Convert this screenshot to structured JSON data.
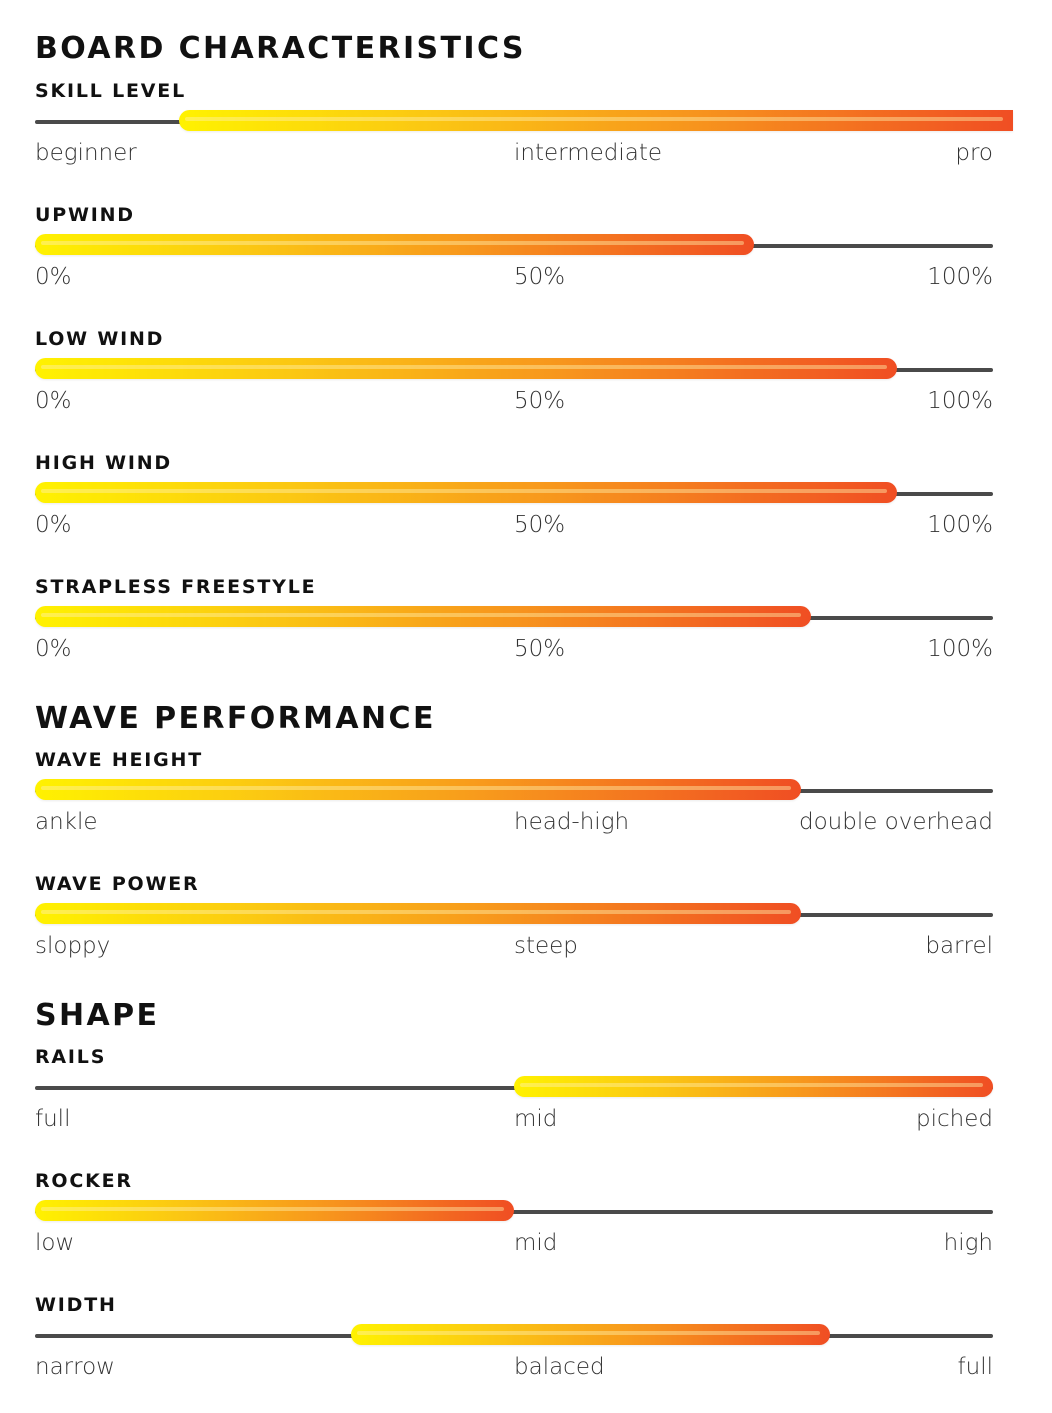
{
  "sections": {
    "board": {
      "title": "BOARD CHARACTERISTICS"
    },
    "wave": {
      "title": "WAVE PERFORMANCE"
    },
    "shape": {
      "title": "SHAPE"
    }
  },
  "metrics": {
    "skill_level": {
      "label": "SKILL LEVEL",
      "scale": [
        "beginner",
        "intermediate",
        "pro"
      ],
      "range": [
        0.15,
        1.0
      ]
    },
    "upwind": {
      "label": "UPWIND",
      "scale": [
        "0%",
        "50%",
        "100%"
      ],
      "range": [
        0.0,
        0.75
      ]
    },
    "low_wind": {
      "label": "LOW WIND",
      "scale": [
        "0%",
        "50%",
        "100%"
      ],
      "range": [
        0.0,
        0.9
      ]
    },
    "high_wind": {
      "label": "HIGH WIND",
      "scale": [
        "0%",
        "50%",
        "100%"
      ],
      "range": [
        0.0,
        0.9
      ]
    },
    "strapless_freestyle": {
      "label": "STRAPLESS FREESTYLE",
      "scale": [
        "0%",
        "50%",
        "100%"
      ],
      "range": [
        0.0,
        0.81
      ]
    },
    "wave_height": {
      "label": "WAVE HEIGHT",
      "scale": [
        "ankle",
        "head-high",
        "double overhead"
      ],
      "range": [
        0.0,
        0.8
      ]
    },
    "wave_power": {
      "label": "WAVE POWER",
      "scale": [
        "sloppy",
        "steep",
        "barrel"
      ],
      "range": [
        0.0,
        0.8
      ]
    },
    "rails": {
      "label": "RAILS",
      "scale": [
        "full",
        "mid",
        "piched"
      ],
      "range": [
        0.5,
        1.0
      ]
    },
    "rocker": {
      "label": "ROCKER",
      "scale": [
        "low",
        "mid",
        "high"
      ],
      "range": [
        0.0,
        0.5
      ]
    },
    "width": {
      "label": "WIDTH",
      "scale": [
        "narrow",
        "balaced",
        "full"
      ],
      "range": [
        0.33,
        0.83
      ]
    }
  },
  "colors": {
    "gradient_start": "#fff200",
    "gradient_end": "#f04e23",
    "track": "#4a4a4a"
  }
}
